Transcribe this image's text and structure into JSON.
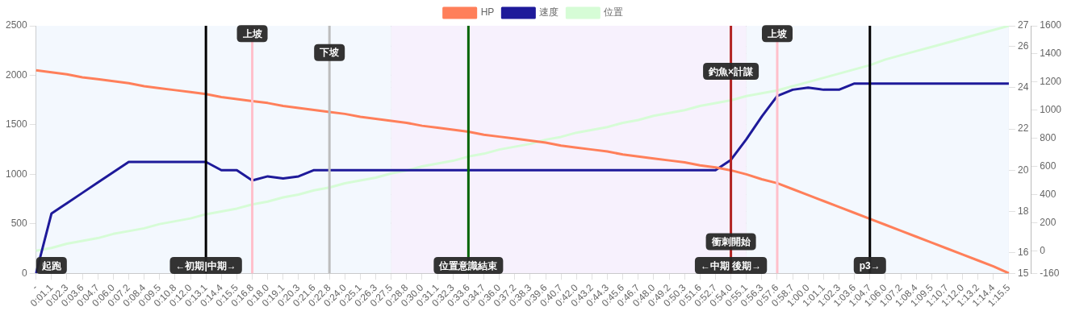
{
  "chart_data": {
    "type": "line",
    "categories": [
      "-",
      "0:01.1",
      "0:02.3",
      "0:03.6",
      "0:04.7",
      "0:06.0",
      "0:07.2",
      "0:08.4",
      "0:09.5",
      "0:10.8",
      "0:12.0",
      "0:13.1",
      "0:14.4",
      "0:15.5",
      "0:16.8",
      "0:18.0",
      "0:19.1",
      "0:20.3",
      "0:21.6",
      "0:22.8",
      "0:24.0",
      "0:25.1",
      "0:26.3",
      "0:27.5",
      "0:28.8",
      "0:30.0",
      "0:31.1",
      "0:32.3",
      "0:33.6",
      "0:34.7",
      "0:36.0",
      "0:37.2",
      "0:38.3",
      "0:39.6",
      "0:40.7",
      "0:42.0",
      "0:43.2",
      "0:44.3",
      "0:45.6",
      "0:46.7",
      "0:48.0",
      "0:49.2",
      "0:50.3",
      "0:51.6",
      "0:52.7",
      "0:54.0",
      "0:55.1",
      "0:56.3",
      "0:57.6",
      "0:58.7",
      "1:00.0",
      "1:01.1",
      "1:02.3",
      "1:03.6",
      "1:04.7",
      "1:06.0",
      "1:07.2",
      "1:08.4",
      "1:09.5",
      "1:10.7",
      "1:12.0",
      "1:13.2",
      "1:14.4",
      "1:15.5"
    ],
    "ylim": [
      0,
      2500
    ],
    "yticks": [
      0,
      500,
      1000,
      1500,
      2000,
      2500
    ],
    "y2lim": [
      15,
      27
    ],
    "y2ticks": [
      15,
      16,
      18,
      20,
      22,
      24,
      26,
      27
    ],
    "y3lim": [
      -160,
      1600
    ],
    "y3ticks": [
      -160,
      0,
      200,
      400,
      600,
      800,
      1000,
      1200,
      1400,
      1600
    ],
    "grid": true,
    "legend": "top",
    "series": [
      {
        "name": "HP",
        "color": "#ff7f5a",
        "values": [
          2050,
          2030,
          2010,
          1980,
          1960,
          1940,
          1920,
          1890,
          1870,
          1850,
          1830,
          1810,
          1780,
          1760,
          1740,
          1720,
          1690,
          1670,
          1650,
          1630,
          1610,
          1580,
          1560,
          1540,
          1520,
          1490,
          1470,
          1450,
          1430,
          1400,
          1380,
          1360,
          1340,
          1320,
          1290,
          1270,
          1250,
          1230,
          1200,
          1180,
          1160,
          1140,
          1120,
          1090,
          1070,
          1040,
          1000,
          950,
          910,
          850,
          790,
          730,
          670,
          610,
          550,
          490,
          430,
          370,
          310,
          250,
          190,
          130,
          70,
          0
        ]
      },
      {
        "name": "速度",
        "color": "#1e1a9a",
        "axis": "y2",
        "values": [
          15,
          17.9,
          18.4,
          18.9,
          19.4,
          19.9,
          20.4,
          20.4,
          20.4,
          20.4,
          20.4,
          20.4,
          20.0,
          20.0,
          19.5,
          19.7,
          19.6,
          19.7,
          20.0,
          20.0,
          20.0,
          20.0,
          20.0,
          20.0,
          20.0,
          20.0,
          20.0,
          20.0,
          20.0,
          20.0,
          20.0,
          20.0,
          20.0,
          20.0,
          20.0,
          20.0,
          20.0,
          20.0,
          20.0,
          20.0,
          20.0,
          20.0,
          20.0,
          20.0,
          20.0,
          20.5,
          21.5,
          22.6,
          23.6,
          23.9,
          24.0,
          23.9,
          23.9,
          24.2,
          24.2,
          24.2,
          24.2,
          24.2,
          24.2,
          24.2,
          24.2,
          24.2,
          24.2,
          24.2
        ]
      },
      {
        "name": "位置",
        "color": "#d6fcd6",
        "axis": "y3",
        "values": [
          0,
          20,
          50,
          70,
          90,
          120,
          140,
          160,
          190,
          210,
          230,
          260,
          280,
          300,
          330,
          350,
          380,
          400,
          430,
          450,
          480,
          500,
          520,
          550,
          570,
          600,
          620,
          640,
          670,
          690,
          720,
          740,
          760,
          790,
          810,
          840,
          860,
          880,
          910,
          930,
          960,
          980,
          1000,
          1030,
          1050,
          1070,
          1100,
          1120,
          1140,
          1170,
          1200,
          1230,
          1260,
          1290,
          1320,
          1360,
          1390,
          1420,
          1450,
          1480,
          1510,
          1540,
          1570,
          1600
        ]
      }
    ],
    "bands": [
      {
        "axis": "x",
        "from": "-",
        "to": "0:27.5",
        "color": "#f3f8fe"
      },
      {
        "axis": "x",
        "from": "0:27.5",
        "to": "0:55.1",
        "color": "#f7f1fd"
      },
      {
        "axis": "x",
        "from": "0:55.1",
        "to": "1:15.5",
        "color": "#f3f8fe"
      }
    ],
    "ref_lines": [
      {
        "axis": "x",
        "value": "0:13.1",
        "color": "#000000"
      },
      {
        "axis": "x",
        "value": "0:16.8",
        "color": "#ffc0cb"
      },
      {
        "axis": "x",
        "value": "0:22.8",
        "color": "#bdbdbd"
      },
      {
        "axis": "x",
        "value": "0:33.6",
        "color": "#006400"
      },
      {
        "axis": "x",
        "value": "0:54.0",
        "color": "#b22222"
      },
      {
        "axis": "x",
        "value": "0:57.6",
        "color": "#ffc0cb"
      },
      {
        "axis": "x",
        "value": "1:04.7",
        "color": "#000000"
      }
    ],
    "annotations": [
      {
        "text": "起跑",
        "x": "0:01.1",
        "y": 80
      },
      {
        "text": "←初期|中期→",
        "x": "0:13.1",
        "y": 80
      },
      {
        "text": "上坡",
        "x": "0:16.8",
        "y": 2420
      },
      {
        "text": "下坡",
        "x": "0:22.8",
        "y": 2230
      },
      {
        "text": "位置意識結束",
        "x": "0:33.6",
        "y": 80
      },
      {
        "text": "釣魚×計謀",
        "x": "0:54.0",
        "y": 2040
      },
      {
        "text": "衝刺開始",
        "x": "0:54.0",
        "y": 320
      },
      {
        "text": "←中期 後期→",
        "x": "0:54.0",
        "y": 80
      },
      {
        "text": "上坡",
        "x": "0:57.6",
        "y": 2420
      },
      {
        "text": "p3→",
        "x": "1:04.7",
        "y": 80
      }
    ]
  }
}
